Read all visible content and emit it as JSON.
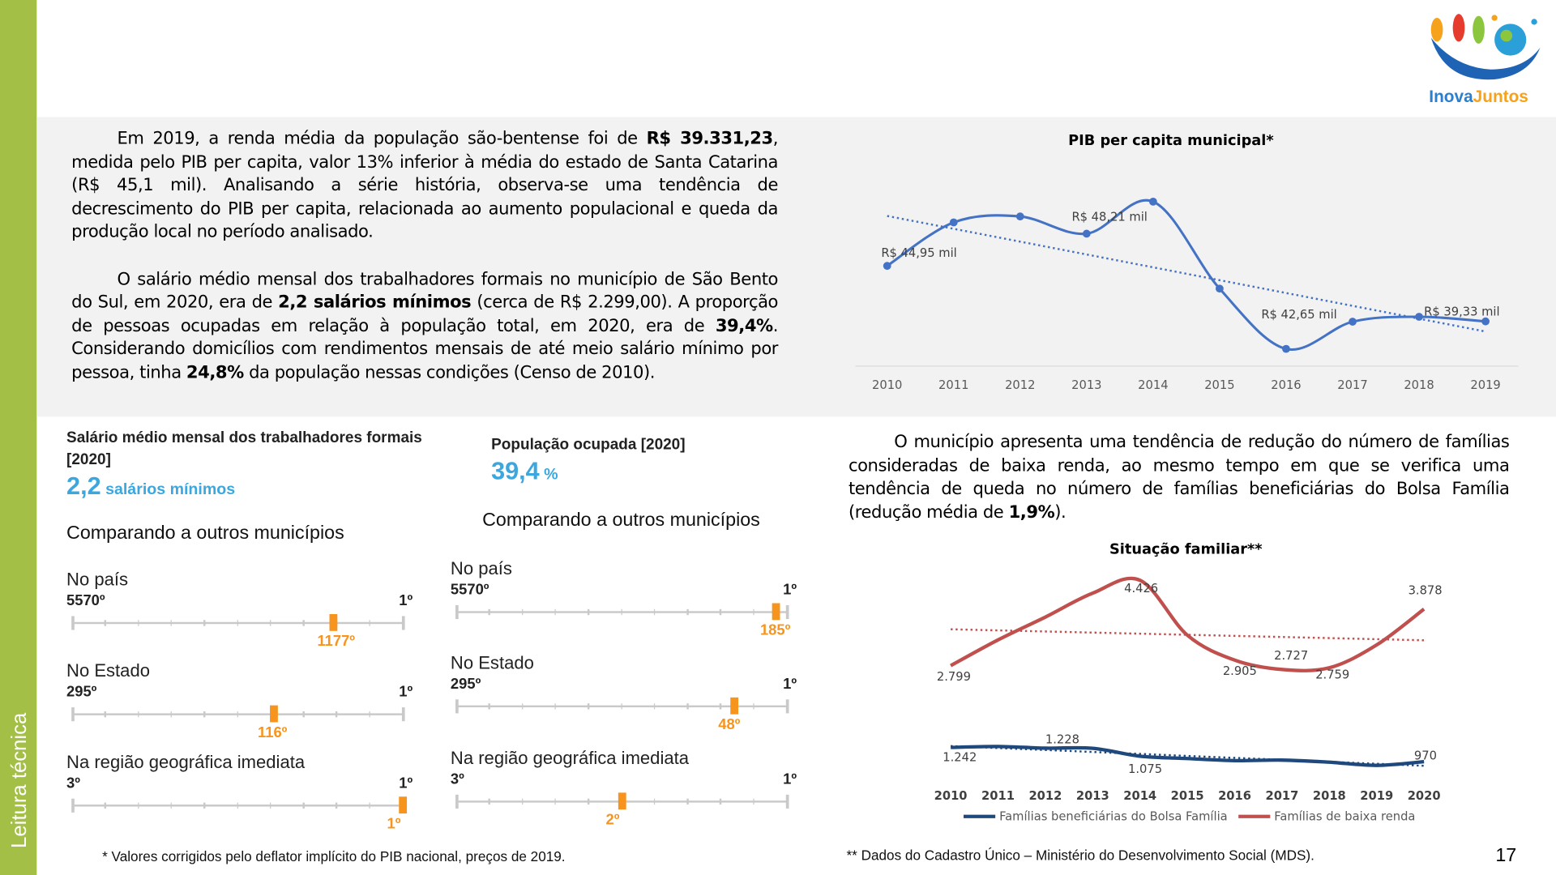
{
  "sidebar": {
    "label": "Leitura técnica",
    "color": "#a3bf45"
  },
  "logo": {
    "text_a": "Inova",
    "text_b": "Juntos"
  },
  "intro": {
    "p1": [
      "Em 2019, a renda média da população são-bentense foi de ",
      "R$ 39.331,23",
      ", medida pelo PIB per capita, valor 13% inferior à média do estado de Santa Catarina (R$ 45,1 mil). Analisando a série história, observa-se uma tendência de decrescimento do PIB per capita, relacionada ao aumento populacional e queda da produção local no período analisado."
    ],
    "p2": [
      "O salário médio mensal dos trabalhadores formais no município de São Bento do Sul, em 2020, era de ",
      "2,2 salários mínimos",
      " (cerca de R$ 2.299,00). A proporção de pessoas ocupadas em relação à população total, em 2020, era de ",
      "39,4%",
      ". Considerando domicílios com rendimentos mensais de até meio salário mínimo por pessoa, tinha ",
      "24,8%",
      " da população nessas condições (Censo de 2010)."
    ]
  },
  "families_text": [
    "O município apresenta uma tendência de redução do número de famílias consideradas de baixa renda, ao mesmo tempo em que se verifica uma tendência de queda no número de famílias beneficiárias do Bolsa Família (redução média de ",
    "1,9%",
    "). "
  ],
  "indicators": [
    {
      "title": "Salário médio mensal dos trabalhadores formais [2020]",
      "value": "2,2",
      "unit": "salários mínimos",
      "compare": "Comparando a outros municípios",
      "ranks": [
        {
          "label": "No país",
          "worst": "5570º",
          "best": "1º",
          "total": 5570,
          "position": 1177,
          "position_label": "1177º"
        },
        {
          "label": "No Estado",
          "worst": "295º",
          "best": "1º",
          "total": 295,
          "position": 116,
          "position_label": "116º"
        },
        {
          "label": "Na região geográfica imediata",
          "worst": "3º",
          "best": "1º",
          "total": 3,
          "position": 1,
          "position_label": "1º"
        }
      ]
    },
    {
      "title": "População ocupada [2020]",
      "value": "39,4",
      "unit": "%",
      "compare": "Comparando a outros municípios",
      "ranks": [
        {
          "label": "No país",
          "worst": "5570º",
          "best": "1º",
          "total": 5570,
          "position": 185,
          "position_label": "185º"
        },
        {
          "label": "No Estado",
          "worst": "295º",
          "best": "1º",
          "total": 295,
          "position": 48,
          "position_label": "48º"
        },
        {
          "label": "Na região geográfica imediata",
          "worst": "3º",
          "best": "1º",
          "total": 3,
          "position": 2,
          "position_label": "2º"
        }
      ]
    }
  ],
  "colors": {
    "rank_marker": "#f7941d",
    "accent_blue": "#3ba7de",
    "pib_line": "#4472c4",
    "baixa_renda": "#c0504d",
    "bolsa": "#1f497d"
  },
  "chart_data": [
    {
      "type": "line",
      "title": "PIB per capita municipal*",
      "categories": [
        "2010",
        "2011",
        "2012",
        "2013",
        "2014",
        "2015",
        "2016",
        "2017",
        "2018",
        "2019"
      ],
      "series": [
        {
          "values": [
            44.95,
            49.35,
            49.95,
            48.21,
            51.45,
            42.65,
            36.55,
            39.3,
            39.8,
            39.33
          ]
        }
      ],
      "data_labels": [
        {
          "text": "R$ 44,95 mil",
          "index": 0
        },
        {
          "text": "R$ 48,21 mil",
          "index": 3
        },
        {
          "text": "R$ 42,65 mil",
          "index": 5
        },
        {
          "text": "R$ 39,33 mil",
          "index": 9
        }
      ],
      "trendline": "linear, dotted",
      "ylim": [
        33,
        57
      ],
      "grid": false
    },
    {
      "type": "line",
      "title": "Situação familiar**",
      "categories": [
        "2010",
        "2011",
        "2012",
        "2013",
        "2014",
        "2015",
        "2016",
        "2017",
        "2018",
        "2019",
        "2020"
      ],
      "series": [
        {
          "name": "Famílias beneficiárias do Bolsa Família",
          "values": [
            1242,
            1260,
            1228,
            1225,
            1075,
            1030,
            990,
            1000,
            960,
            900,
            970
          ]
        },
        {
          "name": "Famílias de baixa renda",
          "values": [
            2799,
            3290,
            3725,
            4180,
            4426,
            3380,
            2905,
            2727,
            2759,
            3195,
            3878
          ]
        }
      ],
      "data_labels": [
        {
          "series": 0,
          "index": 0,
          "text": "1.242"
        },
        {
          "series": 0,
          "index": 2,
          "text": "1.228"
        },
        {
          "series": 0,
          "index": 4,
          "text": "1.075"
        },
        {
          "series": 0,
          "index": 10,
          "text": "970"
        },
        {
          "series": 1,
          "index": 0,
          "text": "2.799"
        },
        {
          "series": 1,
          "index": 4,
          "text": "4.426"
        },
        {
          "series": 1,
          "index": 6,
          "text": "2.905"
        },
        {
          "series": 1,
          "index": 7,
          "text": "2.727"
        },
        {
          "series": 1,
          "index": 8,
          "text": "2.759"
        },
        {
          "series": 1,
          "index": 10,
          "text": "3.878"
        }
      ],
      "trendline": "linear, dotted",
      "legend": "bottom",
      "grid": false
    }
  ],
  "footnotes": {
    "left": "* Valores corrigidos pelo deflator implícito do PIB nacional, preços de 2019.",
    "right": "** Dados do Cadastro Único – Ministério do Desenvolvimento Social (MDS)."
  },
  "page_number": "17"
}
